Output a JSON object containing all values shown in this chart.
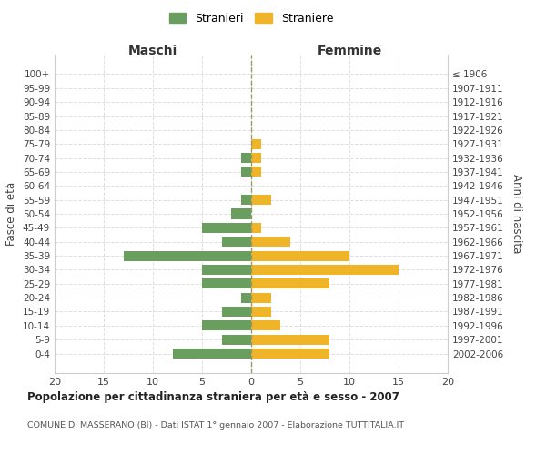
{
  "age_groups": [
    "100+",
    "95-99",
    "90-94",
    "85-89",
    "80-84",
    "75-79",
    "70-74",
    "65-69",
    "60-64",
    "55-59",
    "50-54",
    "45-49",
    "40-44",
    "35-39",
    "30-34",
    "25-29",
    "20-24",
    "15-19",
    "10-14",
    "5-9",
    "0-4"
  ],
  "birth_years": [
    "≤ 1906",
    "1907-1911",
    "1912-1916",
    "1917-1921",
    "1922-1926",
    "1927-1931",
    "1932-1936",
    "1937-1941",
    "1942-1946",
    "1947-1951",
    "1952-1956",
    "1957-1961",
    "1962-1966",
    "1967-1971",
    "1972-1976",
    "1977-1981",
    "1982-1986",
    "1987-1991",
    "1992-1996",
    "1997-2001",
    "2002-2006"
  ],
  "maschi": [
    0,
    0,
    0,
    0,
    0,
    0,
    1,
    1,
    0,
    1,
    2,
    5,
    3,
    13,
    5,
    5,
    1,
    3,
    5,
    3,
    8
  ],
  "femmine": [
    0,
    0,
    0,
    0,
    0,
    1,
    1,
    1,
    0,
    2,
    0,
    1,
    4,
    10,
    15,
    8,
    2,
    2,
    3,
    8,
    8
  ],
  "color_maschi": "#6a9e5e",
  "color_femmine": "#f0b429",
  "title": "Popolazione per cittadinanza straniera per età e sesso - 2007",
  "subtitle": "COMUNE DI MASSERANO (BI) - Dati ISTAT 1° gennaio 2007 - Elaborazione TUTTITALIA.IT",
  "xlabel_left": "Maschi",
  "xlabel_right": "Femmine",
  "ylabel_left": "Fasce di età",
  "ylabel_right": "Anni di nascita",
  "legend_maschi": "Stranieri",
  "legend_femmine": "Straniere",
  "xlim": 20,
  "background_color": "#ffffff",
  "grid_color": "#d8d8d8",
  "spine_color": "#cccccc",
  "zero_line_color": "#999966"
}
